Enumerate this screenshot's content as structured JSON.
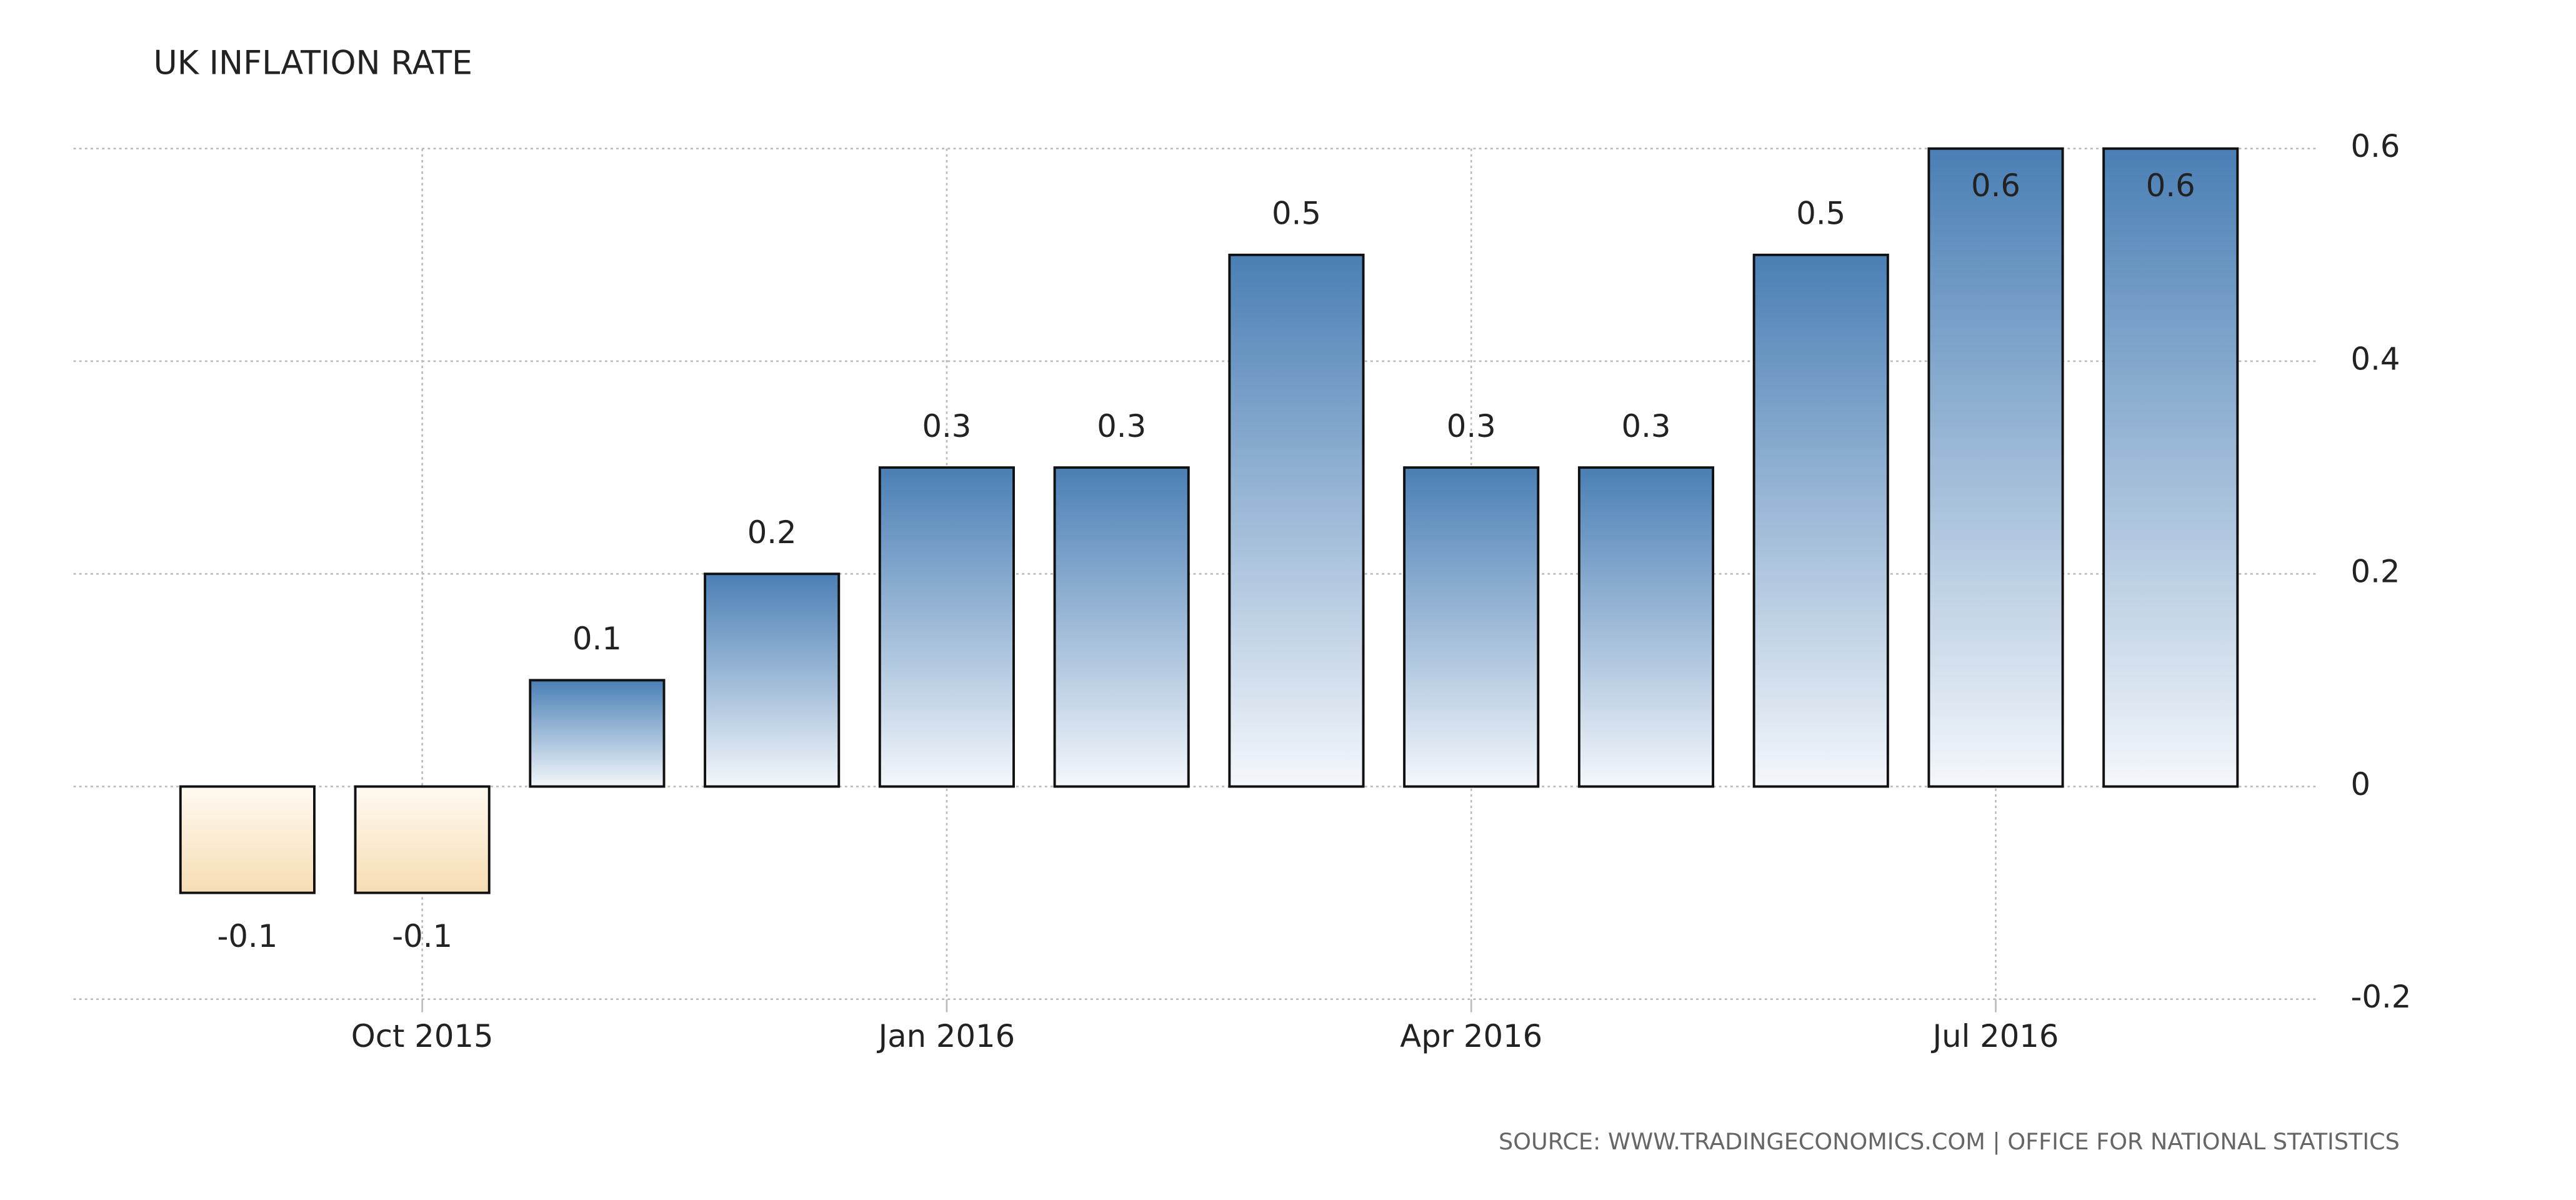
{
  "chart_data": {
    "type": "bar",
    "title": "UK INFLATION RATE",
    "categories": [
      null,
      "Oct 2015",
      null,
      null,
      "Jan 2016",
      null,
      null,
      "Apr 2016",
      null,
      null,
      "Jul 2016",
      null
    ],
    "values": [
      -0.1,
      -0.1,
      0.1,
      0.2,
      0.3,
      0.3,
      0.5,
      0.3,
      0.3,
      0.5,
      0.6,
      0.6
    ],
    "colors": {
      "positive": "#4a7fb5",
      "negative": "#f7ddb3"
    },
    "ylim": [
      -0.2,
      0.6
    ],
    "yticks": [
      -0.2,
      0,
      0.2,
      0.4,
      0.6
    ],
    "grid": true,
    "source": "SOURCE: WWW.TRADINGECONOMICS.COM | OFFICE FOR NATIONAL STATISTICS"
  }
}
